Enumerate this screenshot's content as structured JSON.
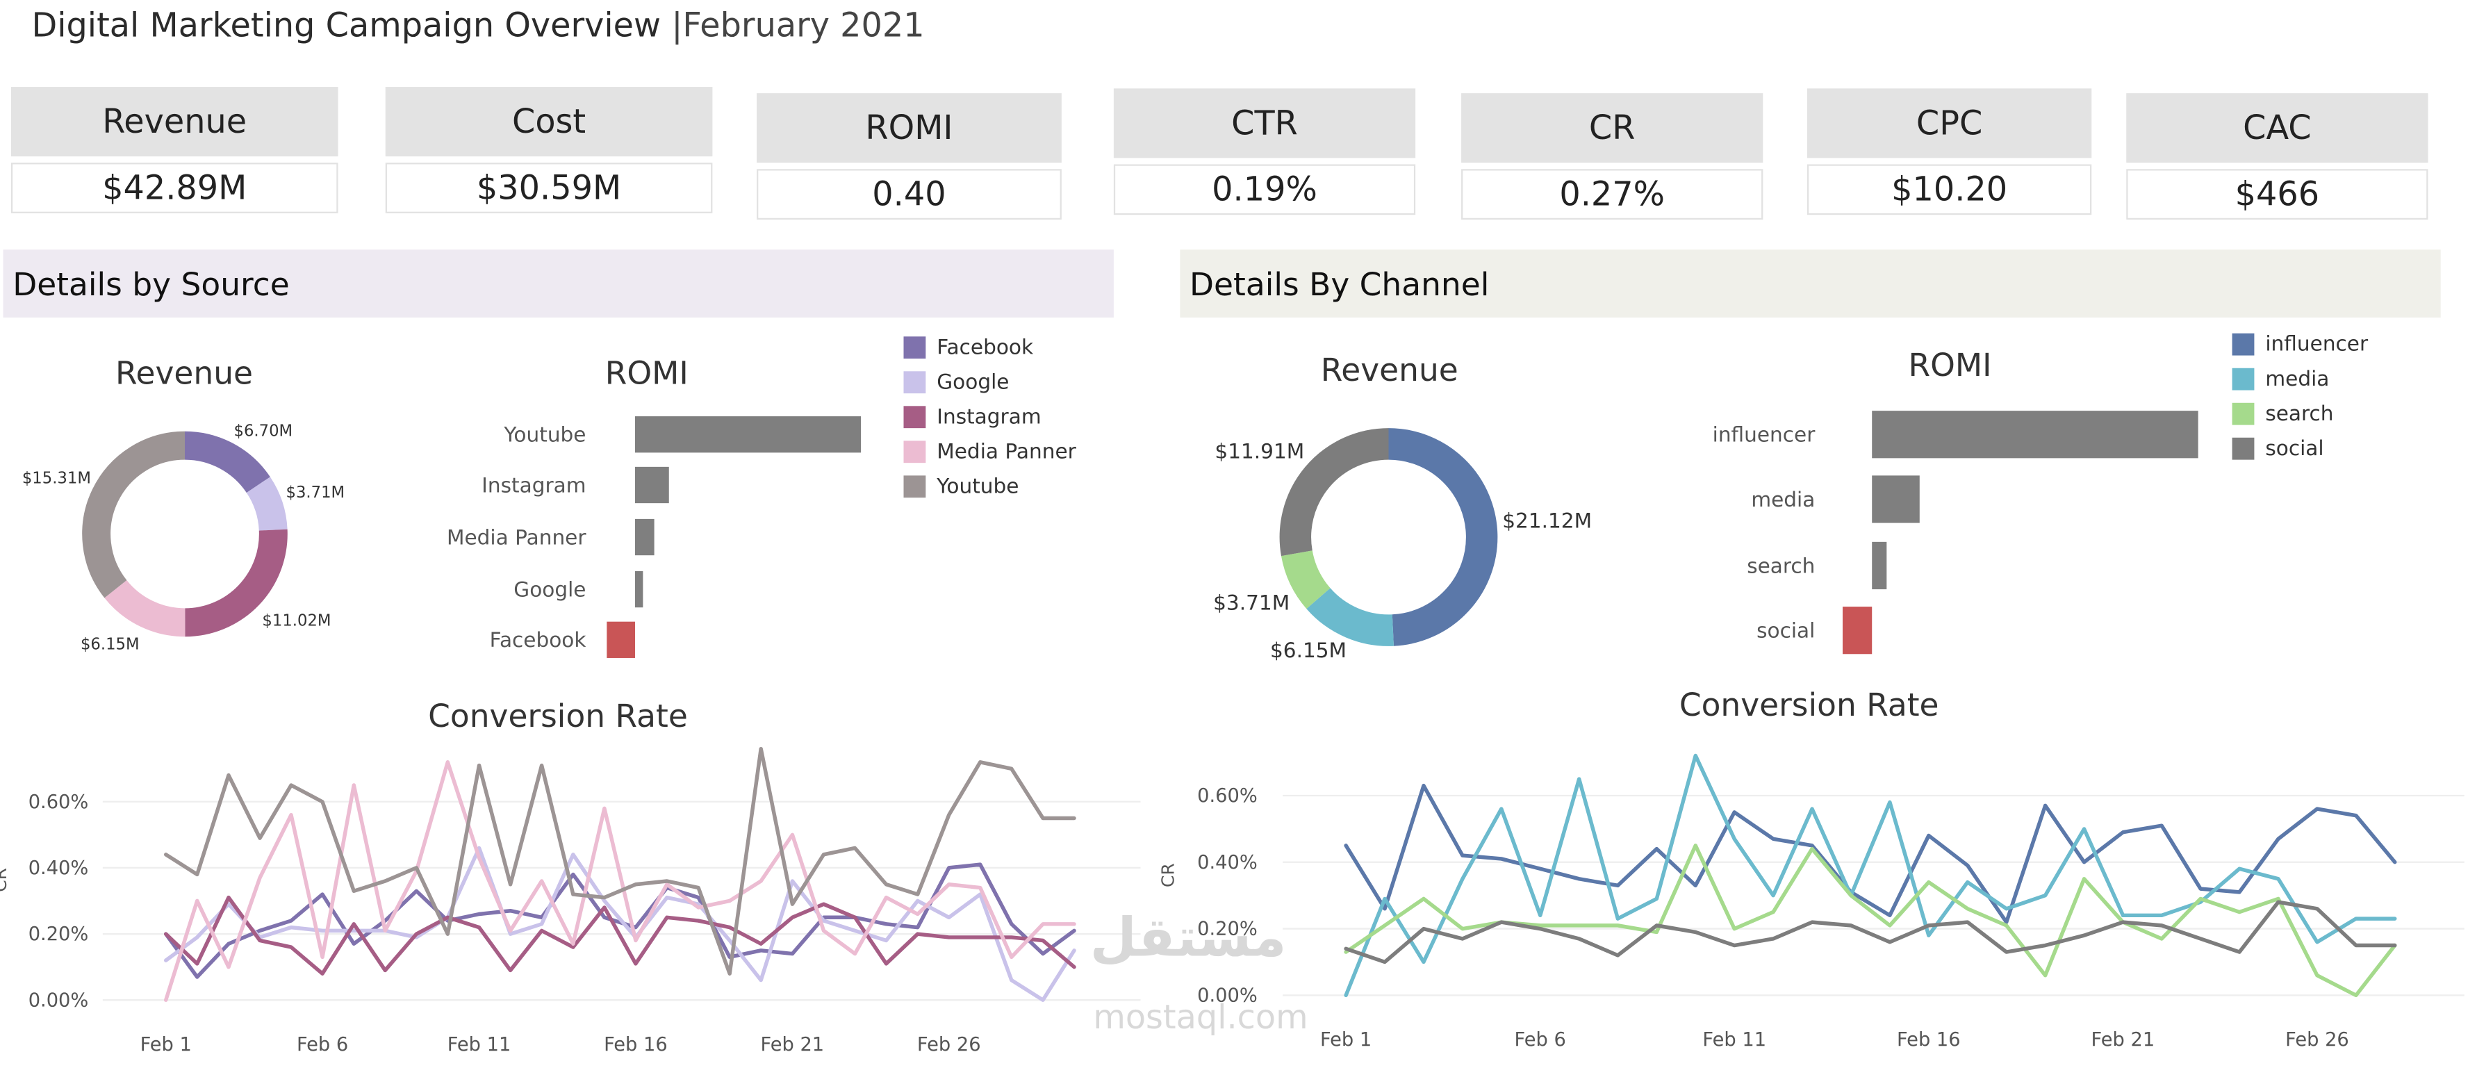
{
  "header": {
    "title": "Digital Marketing Campaign Overview",
    "subtitle": "|February 2021"
  },
  "kpis": [
    {
      "label": "Revenue",
      "value": "$42.89M"
    },
    {
      "label": "Cost",
      "value": "$30.59M"
    },
    {
      "label": "ROMI",
      "value": "0.40"
    },
    {
      "label": "CTR",
      "value": "0.19%"
    },
    {
      "label": "CR",
      "value": "0.27%"
    },
    {
      "label": "CPC",
      "value": "$10.20"
    },
    {
      "label": "CAC",
      "value": "$466"
    }
  ],
  "sections": {
    "source": "Details by Source",
    "channel": "Details By Channel"
  },
  "watermark": {
    "arabic": "مستقل",
    "latin": "mostaql.com"
  },
  "colors": {
    "source_header_bg": "#eeeaf2",
    "channel_header_bg": "#f0f0ea",
    "bar": "#7f7f7f",
    "negative_bar": "#c95556"
  },
  "chart_data": [
    {
      "id": "source_revenue",
      "type": "pie",
      "title": "Revenue",
      "slices": [
        {
          "name": "Facebook",
          "value": 6.7,
          "label": "$6.70M",
          "color": "#7f72ad"
        },
        {
          "name": "Google",
          "value": 3.71,
          "label": "$3.71M",
          "color": "#c9c2ea"
        },
        {
          "name": "Instagram",
          "value": 11.02,
          "label": "$11.02M",
          "color": "#a65d85"
        },
        {
          "name": "Media Panner",
          "value": 6.15,
          "label": "$6.15M",
          "color": "#ecbcd2"
        },
        {
          "name": "Youtube",
          "value": 15.31,
          "label": "$15.31M",
          "color": "#9c9494"
        }
      ]
    },
    {
      "id": "source_romi",
      "type": "bar",
      "title": "ROMI",
      "categories": [
        "Youtube",
        "Instagram",
        "Media Panner",
        "Google",
        "Facebook"
      ],
      "values": [
        2.0,
        0.3,
        0.17,
        0.07,
        -0.25
      ]
    },
    {
      "id": "source_cr",
      "type": "line",
      "title": "Conversion Rate",
      "ylabel": "CR",
      "x_ticks": [
        "Feb 1",
        "Feb 6",
        "Feb 11",
        "Feb 16",
        "Feb 21",
        "Feb 26"
      ],
      "y_ticks": [
        "0.00%",
        "0.20%",
        "0.40%",
        "0.60%"
      ],
      "ylim": [
        0,
        0.76
      ],
      "series": [
        {
          "name": "Facebook",
          "color": "#7f72ad",
          "values": [
            0.2,
            0.07,
            0.17,
            0.21,
            0.24,
            0.32,
            0.17,
            0.24,
            0.33,
            0.24,
            0.26,
            0.27,
            0.25,
            0.38,
            0.25,
            0.22,
            0.34,
            0.31,
            0.13,
            0.15,
            0.14,
            0.25,
            0.25,
            0.23,
            0.22,
            0.4,
            0.41,
            0.23,
            0.14,
            0.21
          ]
        },
        {
          "name": "Google",
          "color": "#c9c2ea",
          "values": [
            0.12,
            0.19,
            0.29,
            0.19,
            0.22,
            0.21,
            0.21,
            0.21,
            0.19,
            0.25,
            0.46,
            0.2,
            0.23,
            0.44,
            0.3,
            0.19,
            0.31,
            0.29,
            0.18,
            0.06,
            0.36,
            0.24,
            0.21,
            0.18,
            0.3,
            0.25,
            0.32,
            0.06,
            0.0,
            0.15
          ]
        },
        {
          "name": "Instagram",
          "color": "#a65d85",
          "values": [
            0.2,
            0.11,
            0.31,
            0.18,
            0.16,
            0.08,
            0.23,
            0.09,
            0.2,
            0.25,
            0.22,
            0.09,
            0.21,
            0.16,
            0.28,
            0.11,
            0.25,
            0.24,
            0.22,
            0.17,
            0.25,
            0.29,
            0.25,
            0.11,
            0.2,
            0.19,
            0.19,
            0.19,
            0.18,
            0.1
          ]
        },
        {
          "name": "Media Panner",
          "color": "#ecbcd2",
          "values": [
            0.0,
            0.3,
            0.1,
            0.37,
            0.56,
            0.13,
            0.65,
            0.21,
            0.39,
            0.72,
            0.43,
            0.21,
            0.36,
            0.17,
            0.58,
            0.18,
            0.35,
            0.28,
            0.3,
            0.36,
            0.5,
            0.21,
            0.14,
            0.31,
            0.26,
            0.35,
            0.34,
            0.13,
            0.23,
            0.23
          ]
        },
        {
          "name": "Youtube",
          "color": "#9c9494",
          "values": [
            0.44,
            0.38,
            0.68,
            0.49,
            0.65,
            0.6,
            0.33,
            0.36,
            0.4,
            0.2,
            0.71,
            0.35,
            0.71,
            0.32,
            0.31,
            0.35,
            0.36,
            0.34,
            0.08,
            0.76,
            0.29,
            0.44,
            0.46,
            0.35,
            0.32,
            0.56,
            0.72,
            0.7,
            0.55,
            0.55
          ]
        }
      ]
    },
    {
      "id": "channel_revenue",
      "type": "pie",
      "title": "Revenue",
      "slices": [
        {
          "name": "influencer",
          "value": 21.12,
          "label": "$21.12M",
          "color": "#5b78a9"
        },
        {
          "name": "media",
          "value": 6.15,
          "label": "$6.15M",
          "color": "#6bbacd"
        },
        {
          "name": "search",
          "value": 3.71,
          "label": "$3.71M",
          "color": "#a5da8c"
        },
        {
          "name": "social",
          "value": 11.91,
          "label": "$11.91M",
          "color": "#7d7d7d"
        }
      ]
    },
    {
      "id": "channel_romi",
      "type": "bar",
      "title": "ROMI",
      "categories": [
        "influencer",
        "media",
        "search",
        "social"
      ],
      "values": [
        1.78,
        0.26,
        0.08,
        -0.16
      ]
    },
    {
      "id": "channel_cr",
      "type": "line",
      "title": "Conversion Rate",
      "ylabel": "CR",
      "x_ticks": [
        "Feb 1",
        "Feb 6",
        "Feb 11",
        "Feb 16",
        "Feb 21",
        "Feb 26"
      ],
      "y_ticks": [
        "0.00%",
        "0.20%",
        "0.40%",
        "0.60%"
      ],
      "ylim": [
        0,
        0.75
      ],
      "series": [
        {
          "name": "influencer",
          "color": "#5b78a9",
          "values": [
            0.45,
            0.26,
            0.63,
            0.42,
            0.41,
            0.38,
            0.35,
            0.33,
            0.44,
            0.33,
            0.55,
            0.47,
            0.45,
            0.31,
            0.24,
            0.48,
            0.39,
            0.22,
            0.57,
            0.4,
            0.49,
            0.51,
            0.32,
            0.31,
            0.47,
            0.56,
            0.54,
            0.4
          ]
        },
        {
          "name": "media",
          "color": "#6bbacd",
          "values": [
            0.0,
            0.29,
            0.1,
            0.35,
            0.56,
            0.24,
            0.65,
            0.23,
            0.29,
            0.72,
            0.47,
            0.3,
            0.56,
            0.3,
            0.58,
            0.18,
            0.34,
            0.26,
            0.3,
            0.5,
            0.24,
            0.24,
            0.28,
            0.38,
            0.35,
            0.16,
            0.23,
            0.23
          ]
        },
        {
          "name": "search",
          "color": "#a5da8c",
          "values": [
            0.13,
            0.21,
            0.29,
            0.2,
            0.22,
            0.21,
            0.21,
            0.21,
            0.19,
            0.45,
            0.2,
            0.25,
            0.44,
            0.3,
            0.21,
            0.34,
            0.26,
            0.21,
            0.06,
            0.35,
            0.22,
            0.17,
            0.29,
            0.25,
            0.29,
            0.06,
            0.0,
            0.15
          ]
        },
        {
          "name": "social",
          "color": "#7d7d7d",
          "values": [
            0.14,
            0.1,
            0.2,
            0.17,
            0.22,
            0.2,
            0.17,
            0.12,
            0.21,
            0.19,
            0.15,
            0.17,
            0.22,
            0.21,
            0.16,
            0.21,
            0.22,
            0.13,
            0.15,
            0.18,
            0.22,
            0.21,
            0.17,
            0.13,
            0.28,
            0.26,
            0.15,
            0.15
          ]
        }
      ]
    }
  ]
}
